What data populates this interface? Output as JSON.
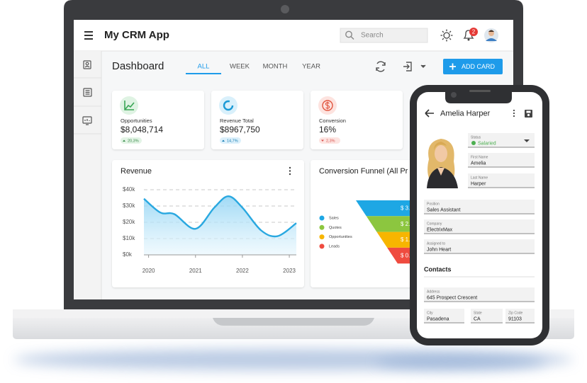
{
  "app": {
    "title": "My CRM App",
    "search_placeholder": "Search",
    "notification_count": "2"
  },
  "dashboard": {
    "title": "Dashboard",
    "tabs": [
      "ALL",
      "WEEK",
      "MONTH",
      "YEAR"
    ],
    "add_button": "ADD CARD",
    "kpis": [
      {
        "label": "Opportunities",
        "value": "$8,048,714",
        "change": "20,3%"
      },
      {
        "label": "Revenue Total",
        "value": "$8967,750",
        "change": "14,7%"
      },
      {
        "label": "Conversion",
        "value": "16%",
        "change": "2,3%"
      }
    ]
  },
  "chart_data": {
    "type": "line",
    "title": "Revenue",
    "x": [
      2019.9,
      2020.25,
      2020.55,
      2021,
      2021.4,
      2021.7,
      2022,
      2022.4,
      2022.75,
      2023.15
    ],
    "values": [
      34500,
      26000,
      25000,
      16000,
      29000,
      36000,
      29000,
      15000,
      11500,
      19500
    ],
    "color": "#29a8e0",
    "xlim": [
      2019.9,
      2023.15
    ],
    "xticks": [
      2020,
      2021,
      2022,
      2023
    ],
    "ylim": [
      0,
      40000
    ],
    "yticks": [
      {
        "value": 0,
        "label": "$0k"
      },
      {
        "value": 10000,
        "label": "$10k"
      },
      {
        "value": 20000,
        "label": "$20k"
      },
      {
        "value": 30000,
        "label": "$30k"
      },
      {
        "value": 40000,
        "label": "$40k"
      }
    ],
    "grid": true
  },
  "funnel": {
    "title": "Conversion Funnel (All Pr",
    "legend": [
      {
        "name": "Sales",
        "color": "#1ea7e4"
      },
      {
        "name": "Quotes",
        "color": "#8cc63f"
      },
      {
        "name": "Opportunities",
        "color": "#f7b500"
      },
      {
        "name": "Leads",
        "color": "#ef4b3f"
      }
    ],
    "labels": [
      "$ 3.",
      "$ 2.",
      "$ 1.",
      "$ 0."
    ]
  },
  "contact": {
    "name": "Amelia Harper",
    "fields": [
      {
        "label": "Status",
        "value": "Salaried"
      },
      {
        "label": "First Name",
        "value": "Amelia"
      },
      {
        "label": "Last Name",
        "value": "Harper"
      },
      {
        "label": "Position",
        "value": "Sales Assistant"
      },
      {
        "label": "Company",
        "value": "ElectrixMax"
      },
      {
        "label": "Assigned to",
        "value": "John Heart"
      }
    ],
    "section": "Contacts",
    "address_fields": [
      {
        "label": "Address",
        "value": "645 Prospect Crescent"
      },
      {
        "label": "City",
        "value": "Pasadena"
      },
      {
        "label": "State",
        "value": "CA"
      },
      {
        "label": "Zip Code",
        "value": "91103"
      }
    ]
  }
}
